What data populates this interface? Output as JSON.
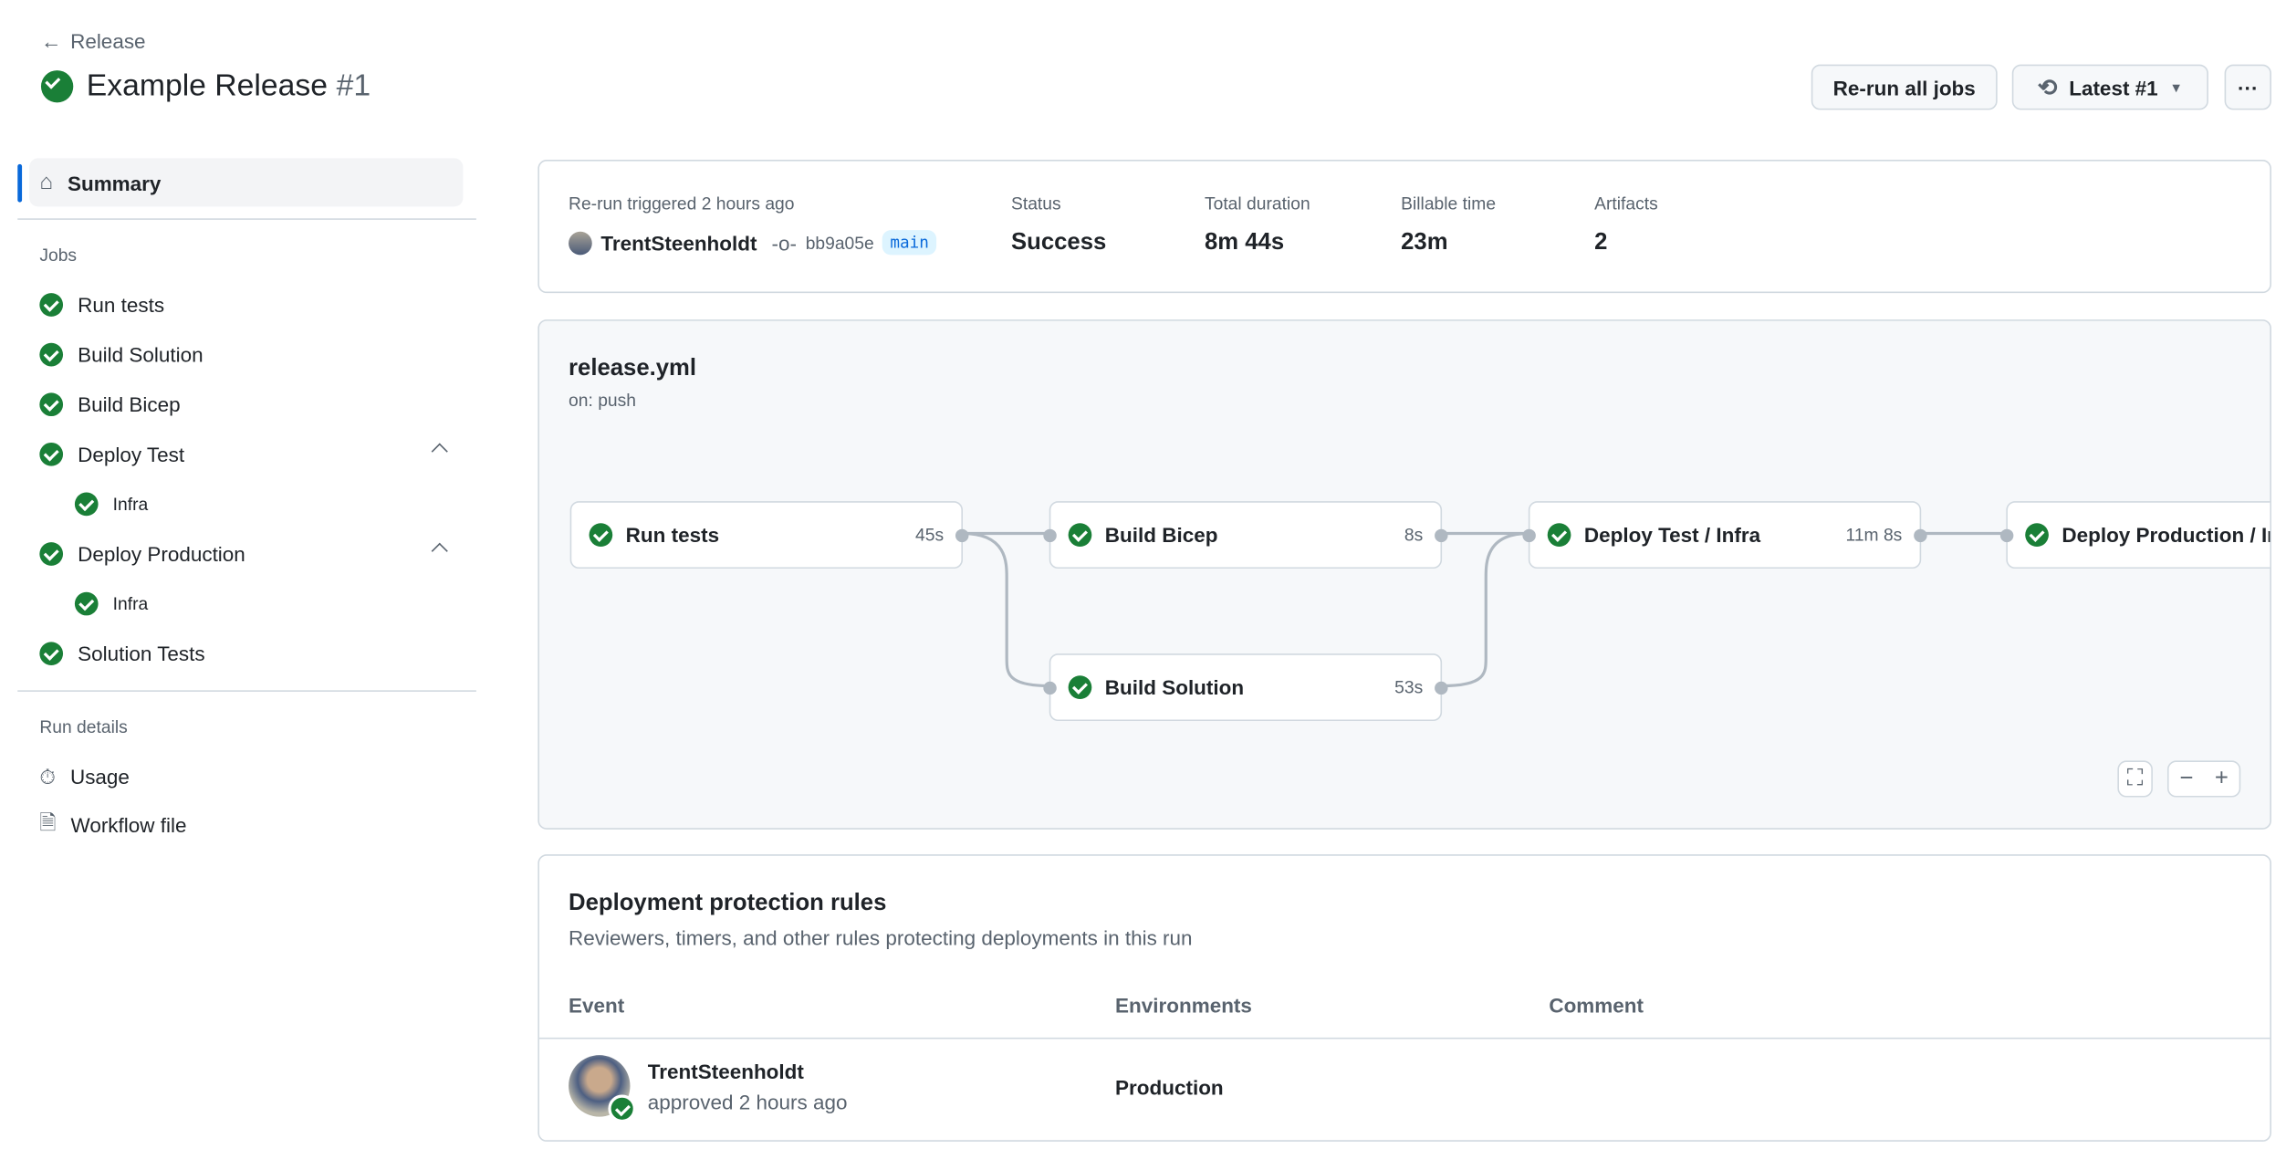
{
  "header": {
    "back_label": "Release",
    "title": "Example Release",
    "run_number": "#1",
    "rerun_label": "Re-run all jobs",
    "latest_label": "Latest #1",
    "more_label": "···"
  },
  "sidebar": {
    "summary_label": "Summary",
    "jobs_heading": "Jobs",
    "jobs": [
      {
        "label": "Run tests"
      },
      {
        "label": "Build Solution"
      },
      {
        "label": "Build Bicep"
      },
      {
        "label": "Deploy Test",
        "expanded": true
      },
      {
        "label": "Infra",
        "sub": true
      },
      {
        "label": "Deploy Production",
        "expanded": true
      },
      {
        "label": "Infra",
        "sub": true
      },
      {
        "label": "Solution Tests"
      }
    ],
    "run_details_heading": "Run details",
    "usage_label": "Usage",
    "workflow_label": "Workflow file"
  },
  "summary": {
    "trigger_label": "Re-run triggered 2 hours ago",
    "user": "TrentSteenholdt",
    "commit": "bb9a05e",
    "branch": "main",
    "status_label": "Status",
    "status": "Success",
    "duration_label": "Total duration",
    "duration": "8m 44s",
    "billable_label": "Billable time",
    "billable": "23m",
    "artifacts_label": "Artifacts",
    "artifacts": "2"
  },
  "workflow": {
    "file": "release.yml",
    "trigger": "on: push",
    "jobs": [
      {
        "label": "Run tests",
        "duration": "45s"
      },
      {
        "label": "Build Bicep",
        "duration": "8s"
      },
      {
        "label": "Build Solution",
        "duration": "53s"
      },
      {
        "label": "Deploy Test / Infra",
        "duration": "11m 8s"
      },
      {
        "label": "Deploy Production / Infra",
        "duration": ""
      }
    ],
    "minus": "−",
    "plus": "+"
  },
  "protection": {
    "title": "Deployment protection rules",
    "subtitle": "Reviewers, timers, and other rules protecting deployments in this run",
    "columns": [
      "Event",
      "Environments",
      "Comment"
    ],
    "rows": [
      {
        "user": "TrentSteenholdt",
        "action": "approved 2 hours ago",
        "environment": "Production",
        "comment": ""
      }
    ]
  },
  "colors": {
    "success": "#1a7f37",
    "accent": "#0969da",
    "branch_bg": "#ddf4ff"
  }
}
